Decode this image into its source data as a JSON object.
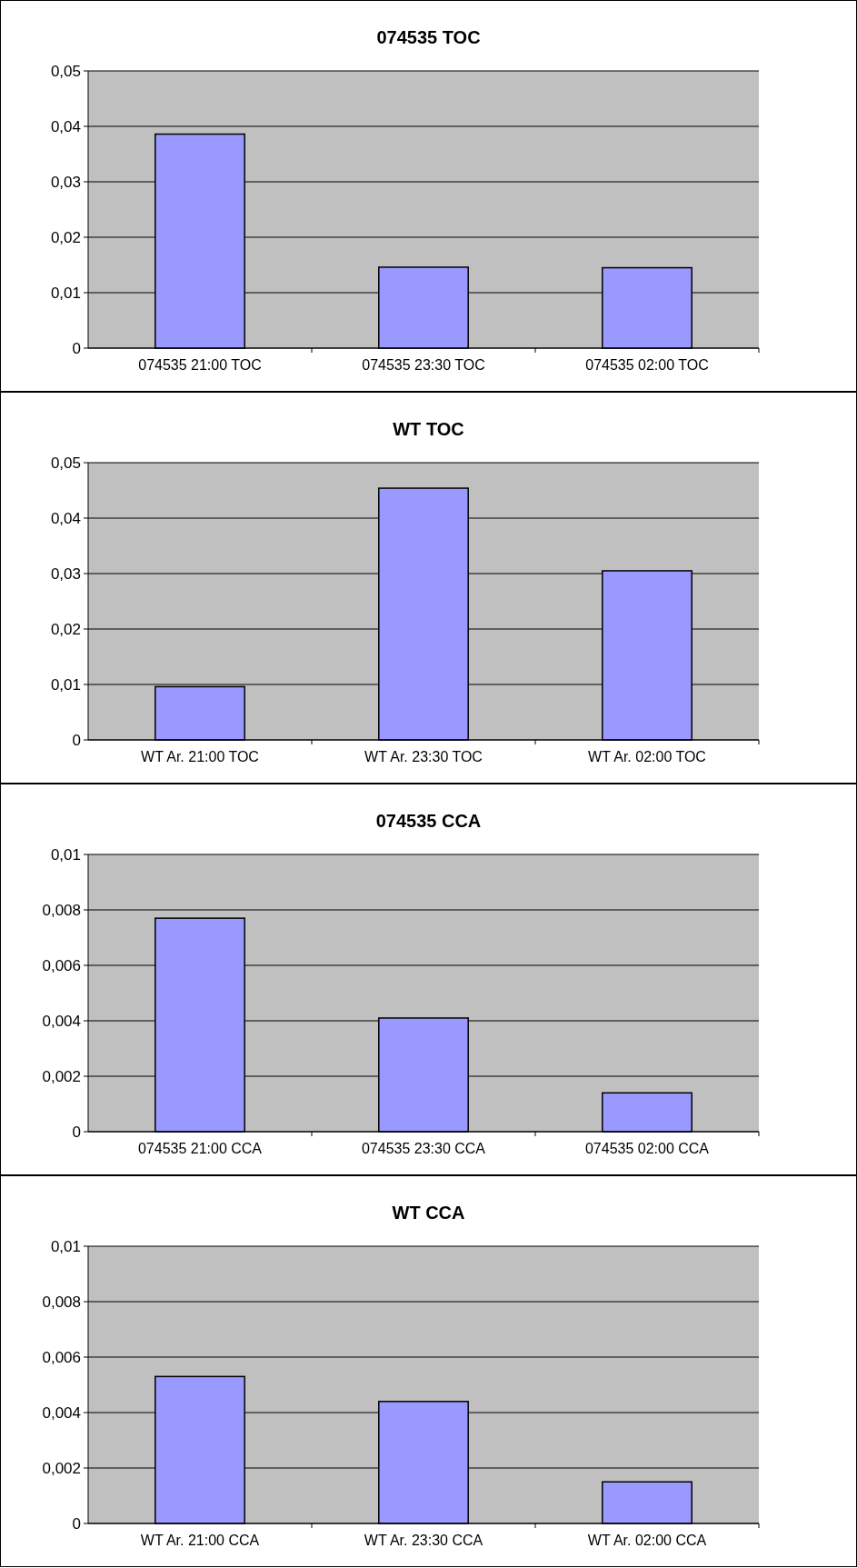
{
  "chart_data": [
    {
      "type": "bar",
      "title": "074535 TOC",
      "categories": [
        "074535 21:00 TOC",
        "074535 23:30 TOC",
        "074535 02:00 TOC"
      ],
      "values": [
        0.0386,
        0.0146,
        0.0145
      ],
      "color": "#9999ff",
      "ylim": [
        0,
        0.05
      ],
      "yticks": [
        {
          "value": 0,
          "label": "0"
        },
        {
          "value": 0.01,
          "label": "0,01"
        },
        {
          "value": 0.02,
          "label": "0,02"
        },
        {
          "value": 0.03,
          "label": "0,03"
        },
        {
          "value": 0.04,
          "label": "0,04"
        },
        {
          "value": 0.05,
          "label": "0,05"
        }
      ],
      "grid": "y"
    },
    {
      "type": "bar",
      "title": "WT TOC",
      "categories": [
        "WT Ar. 21:00 TOC",
        "WT Ar. 23:30 TOC",
        "WT Ar. 02:00 TOC"
      ],
      "values": [
        0.0096,
        0.0454,
        0.0305
      ],
      "color": "#9999ff",
      "ylim": [
        0,
        0.05
      ],
      "yticks": [
        {
          "value": 0,
          "label": "0"
        },
        {
          "value": 0.01,
          "label": "0,01"
        },
        {
          "value": 0.02,
          "label": "0,02"
        },
        {
          "value": 0.03,
          "label": "0,03"
        },
        {
          "value": 0.04,
          "label": "0,04"
        },
        {
          "value": 0.05,
          "label": "0,05"
        }
      ],
      "grid": "y"
    },
    {
      "type": "bar",
      "title": "074535 CCA",
      "categories": [
        "074535 21:00 CCA",
        "074535 23:30 CCA",
        "074535 02:00 CCA"
      ],
      "values": [
        0.0077,
        0.0041,
        0.0014
      ],
      "color": "#9999ff",
      "ylim": [
        0,
        0.01
      ],
      "yticks": [
        {
          "value": 0,
          "label": "0"
        },
        {
          "value": 0.002,
          "label": "0,002"
        },
        {
          "value": 0.004,
          "label": "0,004"
        },
        {
          "value": 0.006,
          "label": "0,006"
        },
        {
          "value": 0.008,
          "label": "0,008"
        },
        {
          "value": 0.01,
          "label": "0,01"
        }
      ],
      "grid": "y"
    },
    {
      "type": "bar",
      "title": "WT CCA",
      "categories": [
        "WT Ar. 21:00 CCA",
        "WT Ar. 23:30 CCA",
        "WT Ar. 02:00 CCA"
      ],
      "values": [
        0.0053,
        0.0044,
        0.0015
      ],
      "color": "#9999ff",
      "ylim": [
        0,
        0.01
      ],
      "yticks": [
        {
          "value": 0,
          "label": "0"
        },
        {
          "value": 0.002,
          "label": "0,002"
        },
        {
          "value": 0.004,
          "label": "0,004"
        },
        {
          "value": 0.006,
          "label": "0,006"
        },
        {
          "value": 0.008,
          "label": "0,008"
        },
        {
          "value": 0.01,
          "label": "0,01"
        }
      ],
      "grid": "y"
    }
  ]
}
